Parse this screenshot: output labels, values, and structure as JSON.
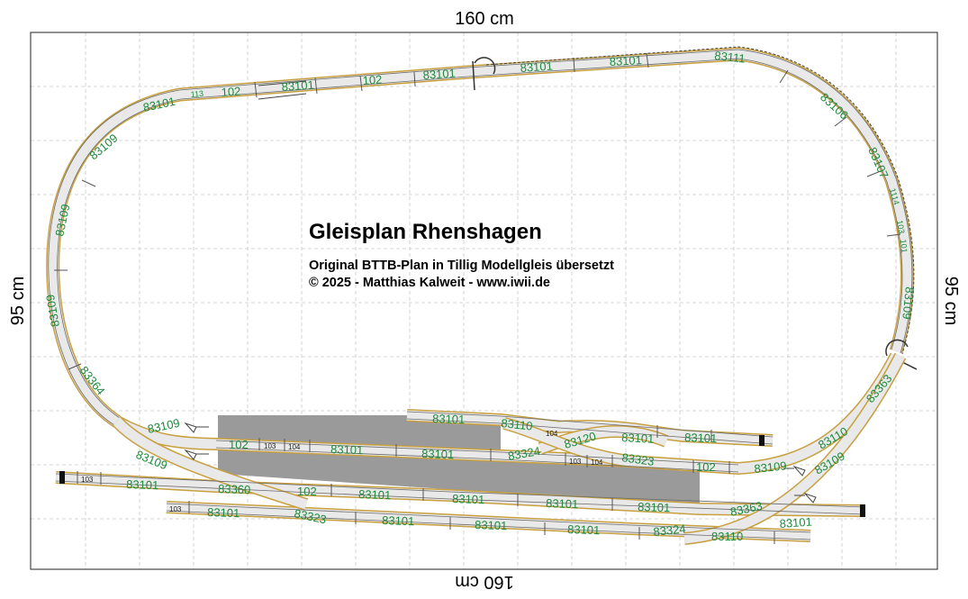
{
  "dimensions": {
    "top": "160 cm",
    "bottom": "160 cm",
    "left": "95 cm",
    "right": "95 cm"
  },
  "title": "Gleisplan Rhenshagen",
  "subtitle_line1": "Original BTTB-Plan in Tillig Modellgleis übersetzt",
  "subtitle_line2": "© 2025 - Matthias Kalweit - www.iwii.de",
  "colors": {
    "track_border": "#c8a040",
    "track_bed": "#e9e9e9",
    "label_green": "#1d8a3c",
    "platform": "#9a9a9a",
    "grid": "#c9c9c9"
  },
  "track_labels": {
    "top_102a": "102",
    "top_113": "113",
    "top_83101a": "83101",
    "top_83101b": "83101",
    "top_102b": "102",
    "top_83101c": "83101",
    "top_83101d": "83101",
    "top_83101e": "83101",
    "top_83111": "83111",
    "left_83101": "83101",
    "left_83109a": "83109",
    "left_83109b": "83109",
    "left_83109c": "83109",
    "left_83364": "83364",
    "right_83106": "83106",
    "right_83107": "83107",
    "right_1114": "1114",
    "right_103": "103",
    "right_101": "101",
    "right_83109": "83109",
    "right_83363": "83363",
    "st_83101a": "83101",
    "st_83110a": "83110",
    "st_104a": "104",
    "st_83120": "83120",
    "st_83101b": "83101",
    "st_83101c": "83101",
    "st_83109a": "83109",
    "st_102a": "102",
    "st_103a": "103",
    "st_104b": "104",
    "st_83101d": "83101",
    "st_83101e": "83101",
    "st_83324a": "83324",
    "st_103b": "103",
    "st_104c": "104",
    "st_83323a": "83323",
    "st_102b": "102",
    "st_83109b": "83109",
    "st_83110b": "83110",
    "st_83109c": "83109",
    "st_83109d": "83109",
    "st_103c": "103",
    "st_83101f": "83101",
    "st_83360": "83360",
    "st_102c": "102",
    "st_83101g": "83101",
    "st_83101h": "83101",
    "st_83101i": "83101",
    "st_83101j": "83101",
    "st_83363b": "83363",
    "st_103d": "103",
    "st_83101k": "83101",
    "st_83323b": "83323",
    "st_83101l": "83101",
    "st_83101m": "83101",
    "st_83101n": "83101",
    "st_83324b": "83324",
    "st_83110c": "83110",
    "st_83101o": "83101"
  }
}
